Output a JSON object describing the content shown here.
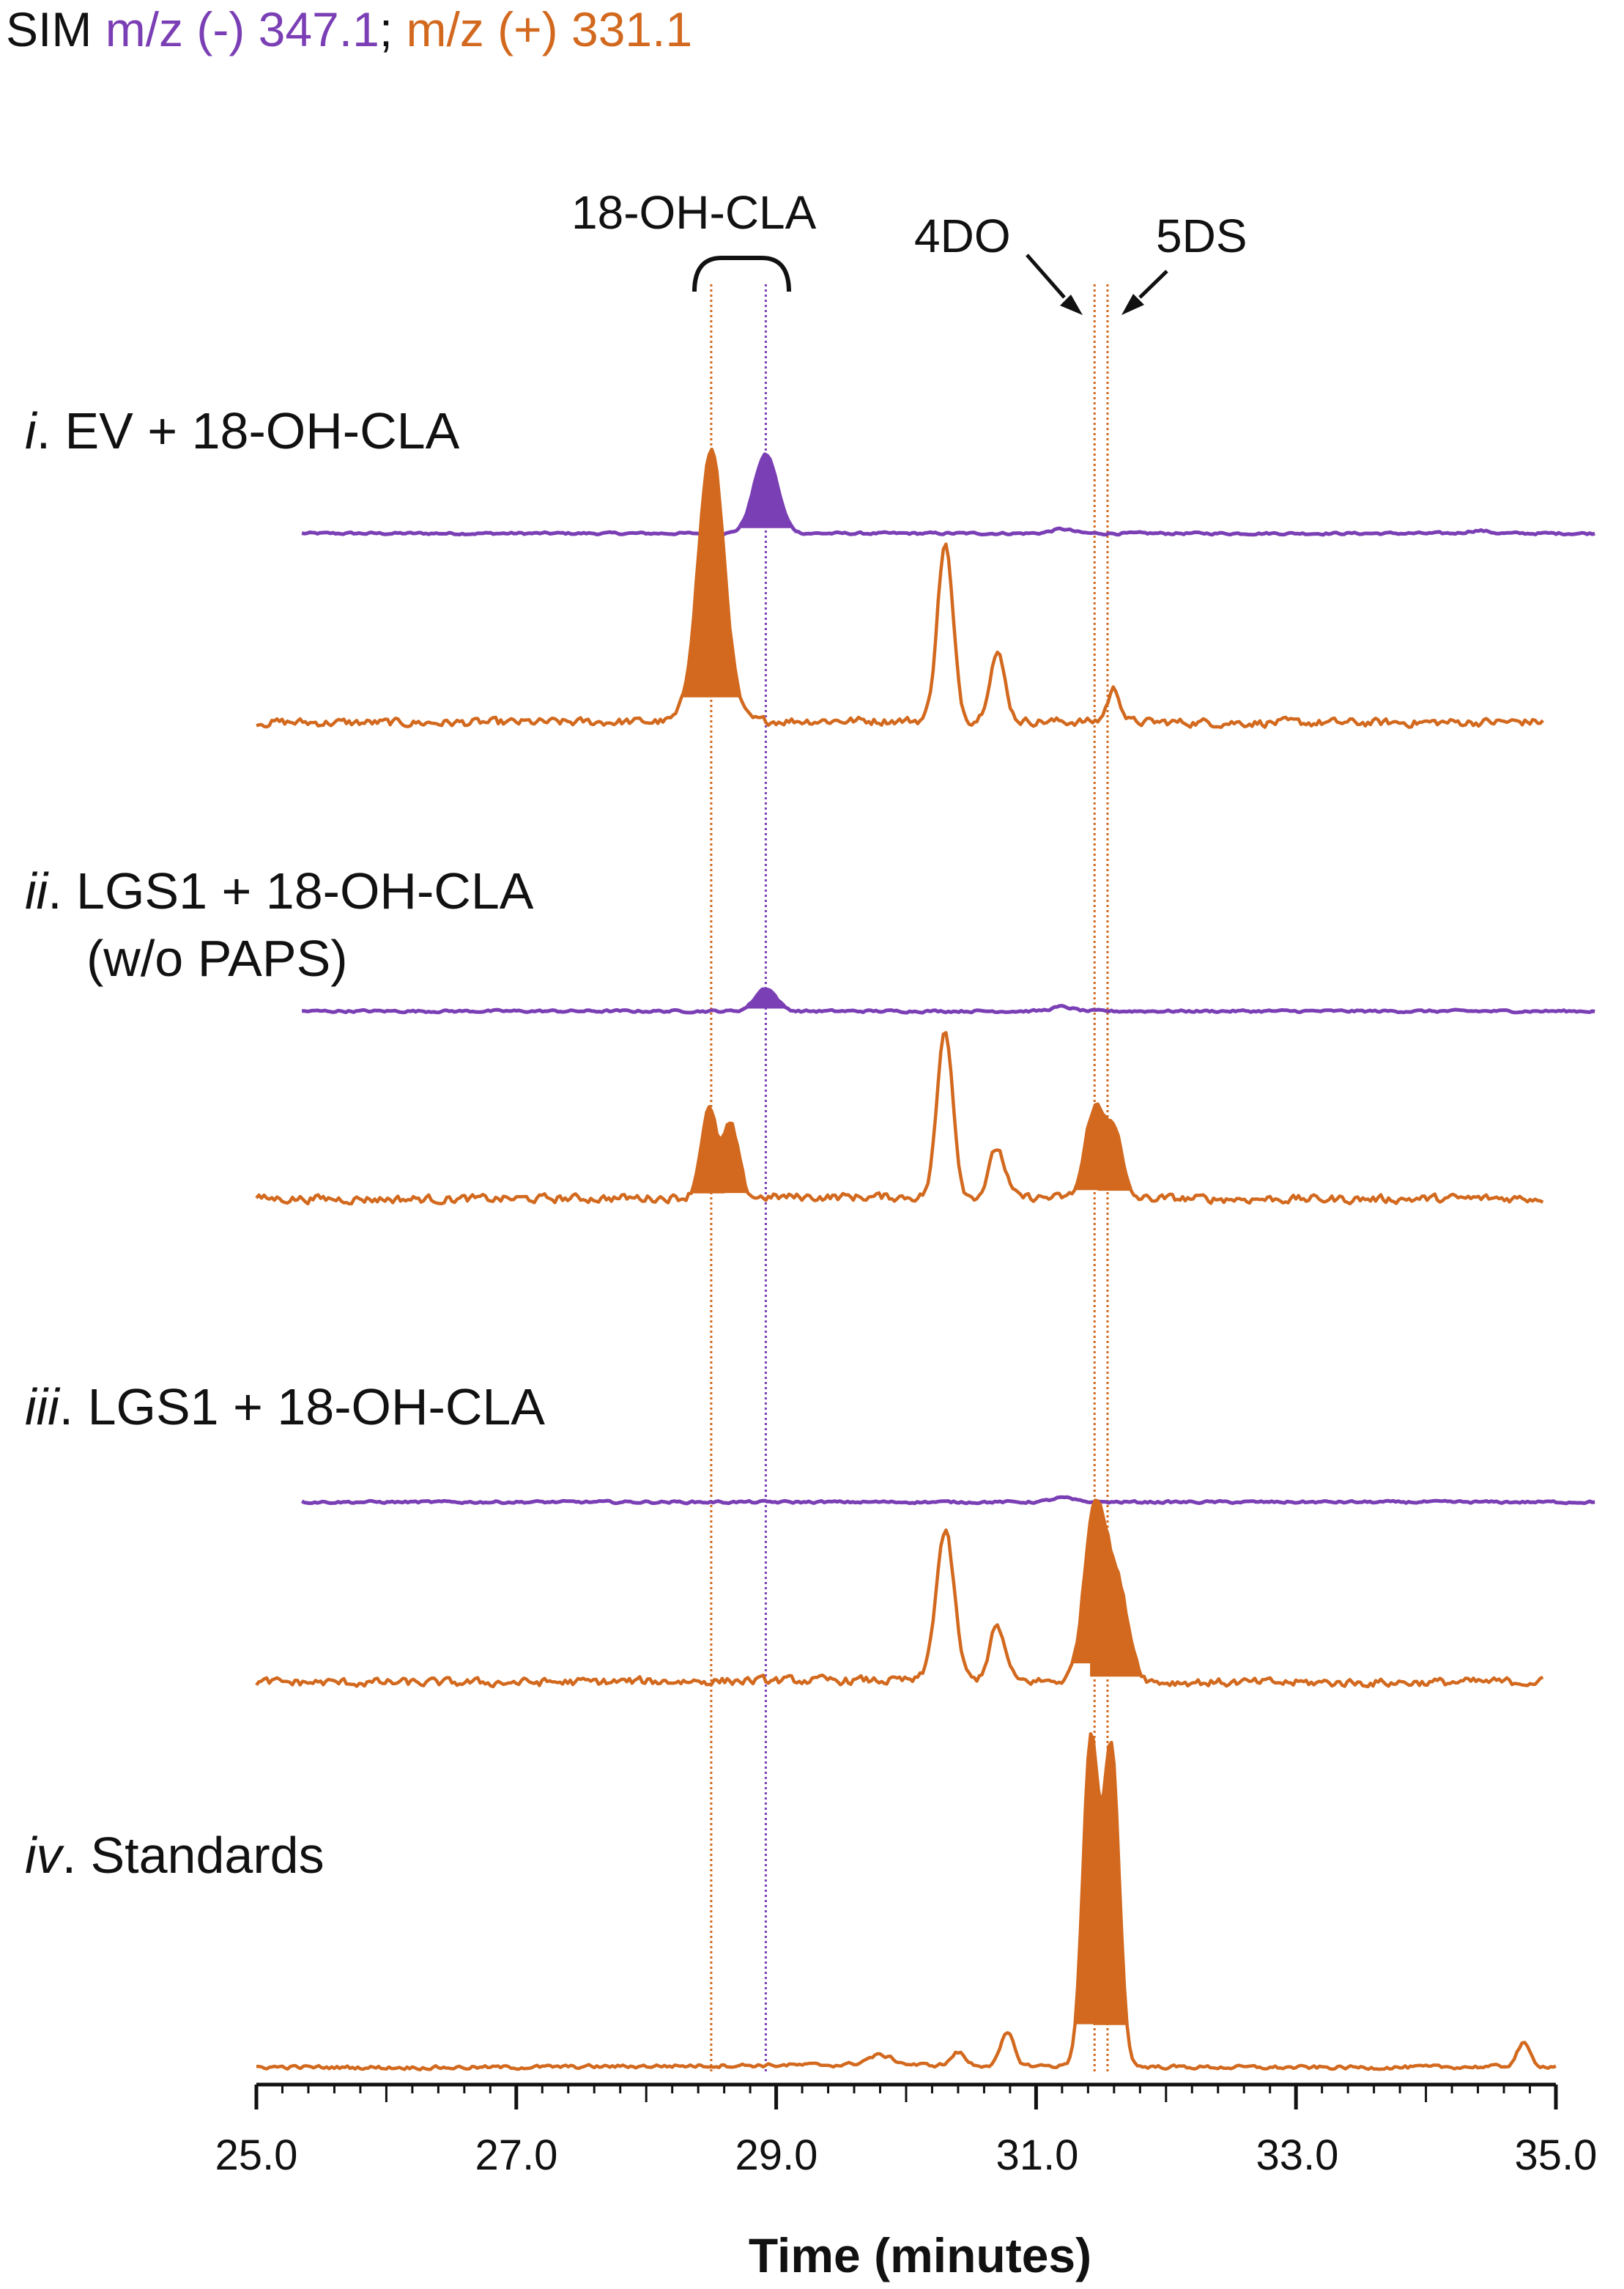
{
  "header": {
    "mode": "SIM",
    "neg_label": "m/z (-)",
    "neg_value": "347.1",
    "separator": ";",
    "pos_label": "m/z (+)",
    "pos_value": "331.1"
  },
  "annotations": {
    "bracket_label": "18-OH-CLA",
    "label_4do": "4DO",
    "label_5ds": "5DS"
  },
  "colors": {
    "negative_trace": "#7B3FB5",
    "positive_trace": "#D2691E",
    "axis": "#111111"
  },
  "chart_data": {
    "type": "line",
    "title": "",
    "xlabel": "Time (minutes)",
    "ylabel": "",
    "xlim": [
      25.0,
      35.0
    ],
    "x_ticks": [
      "25.0",
      "27.0",
      "29.0",
      "31.0",
      "33.0",
      "35.0"
    ],
    "grid": false,
    "reference_lines": [
      {
        "x": 28.5,
        "color": "positive"
      },
      {
        "x": 28.92,
        "color": "negative"
      },
      {
        "x": 31.45,
        "color": "positive"
      },
      {
        "x": 31.55,
        "color": "positive"
      }
    ],
    "panels": [
      {
        "roman": "i",
        "label": "EV + 18-OH-CLA",
        "label2": "",
        "series": [
          {
            "name": "m/z (-) 347.1",
            "x_range": [
              25.35,
              35.3
            ],
            "peaks": [
              [
                28.92,
                0.55,
                0.09,
                true
              ],
              [
                31.2,
                0.03,
                0.08,
                false
              ],
              [
                34.4,
                0.02,
                0.08,
                false
              ]
            ]
          },
          {
            "name": "m/z (+) 331.1",
            "x_range": [
              25.0,
              34.9
            ],
            "peaks": [
              [
                28.5,
                1.0,
                0.1,
                true
              ],
              [
                30.3,
                0.65,
                0.06,
                false
              ],
              [
                30.7,
                0.25,
                0.06,
                false
              ],
              [
                31.6,
                0.12,
                0.05,
                false
              ]
            ]
          }
        ]
      },
      {
        "roman": "ii",
        "label": "LGS1 + 18-OH-CLA",
        "label2": "(w/o PAPS)",
        "series": [
          {
            "name": "m/z (-) 347.1",
            "x_range": [
              25.35,
              35.3
            ],
            "peaks": [
              [
                28.92,
                0.16,
                0.08,
                true
              ],
              [
                31.2,
                0.03,
                0.08,
                false
              ]
            ]
          },
          {
            "name": "m/z (+) 331.1",
            "x_range": [
              25.0,
              34.9
            ],
            "peaks": [
              [
                28.48,
                0.32,
                0.06,
                true
              ],
              [
                28.65,
                0.26,
                0.06,
                true
              ],
              [
                30.3,
                0.62,
                0.06,
                false
              ],
              [
                30.7,
                0.18,
                0.06,
                false
              ],
              [
                31.45,
                0.33,
                0.07,
                true
              ],
              [
                31.6,
                0.25,
                0.06,
                true
              ]
            ]
          }
        ]
      },
      {
        "roman": "iii",
        "label": "LGS1 + 18-OH-CLA",
        "label2": "",
        "series": [
          {
            "name": "m/z (-) 347.1",
            "x_range": [
              25.35,
              35.3
            ],
            "peaks": [
              [
                31.2,
                0.03,
                0.08,
                false
              ]
            ]
          },
          {
            "name": "m/z (+) 331.1",
            "x_range": [
              25.0,
              34.9
            ],
            "peaks": [
              [
                30.3,
                0.55,
                0.07,
                false
              ],
              [
                30.7,
                0.2,
                0.06,
                false
              ],
              [
                31.45,
                0.62,
                0.08,
                true
              ],
              [
                31.62,
                0.35,
                0.09,
                true
              ]
            ]
          }
        ]
      },
      {
        "roman": "iv",
        "label": "Standards",
        "label2": "",
        "series": [
          {
            "name": "m/z (+) 331.1",
            "x_range": [
              25.0,
              35.0
            ],
            "peaks": [
              [
                31.42,
                1.0,
                0.06,
                true
              ],
              [
                31.58,
                0.98,
                0.06,
                true
              ],
              [
                30.78,
                0.1,
                0.05,
                false
              ],
              [
                34.75,
                0.07,
                0.05,
                false
              ],
              [
                29.8,
                0.03,
                0.1,
                false
              ],
              [
                30.4,
                0.04,
                0.05,
                false
              ]
            ]
          }
        ]
      }
    ]
  }
}
